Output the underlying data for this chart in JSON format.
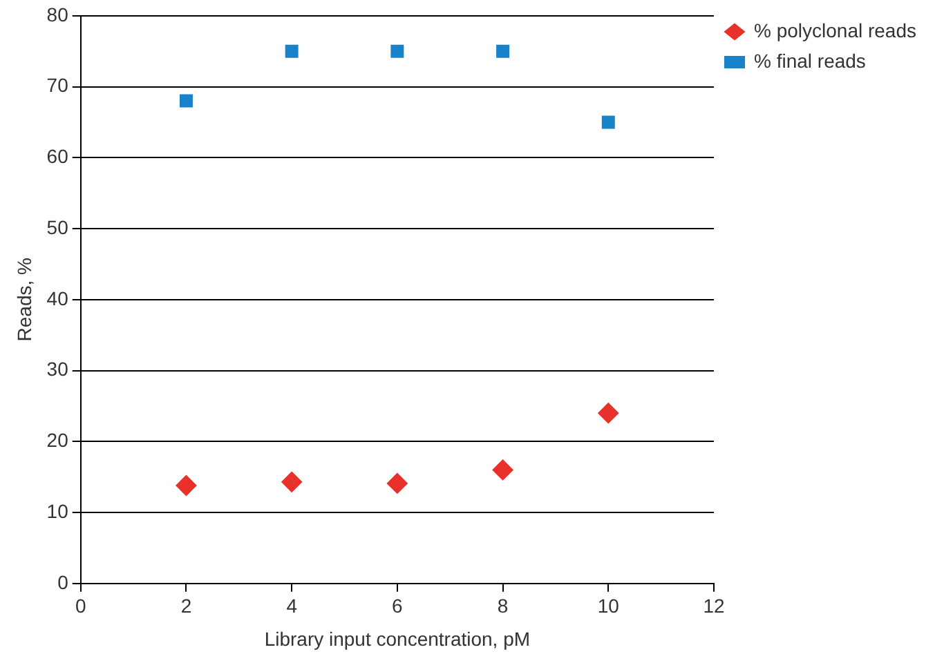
{
  "chart_data": {
    "type": "scatter",
    "xlabel": "Library input concentration, pM",
    "ylabel": "Reads, %",
    "xlim": [
      0,
      12
    ],
    "xticks": [
      0,
      2,
      4,
      6,
      8,
      10,
      12
    ],
    "ylim": [
      0,
      80
    ],
    "yticks": [
      0,
      10,
      20,
      30,
      40,
      50,
      60,
      70,
      80
    ],
    "grid": "y",
    "legend": "top right",
    "series": [
      {
        "name": "% polyclonal reads",
        "color": "#e8312a",
        "marker": "diamond",
        "x": [
          2,
          4,
          6,
          8,
          10
        ],
        "values": [
          13.8,
          14.3,
          14.1,
          16,
          24
        ]
      },
      {
        "name": "% final reads",
        "color": "#1a82c8",
        "marker": "square",
        "x": [
          2,
          4,
          6,
          8,
          10
        ],
        "values": [
          68,
          75,
          75,
          75,
          65
        ]
      }
    ]
  }
}
